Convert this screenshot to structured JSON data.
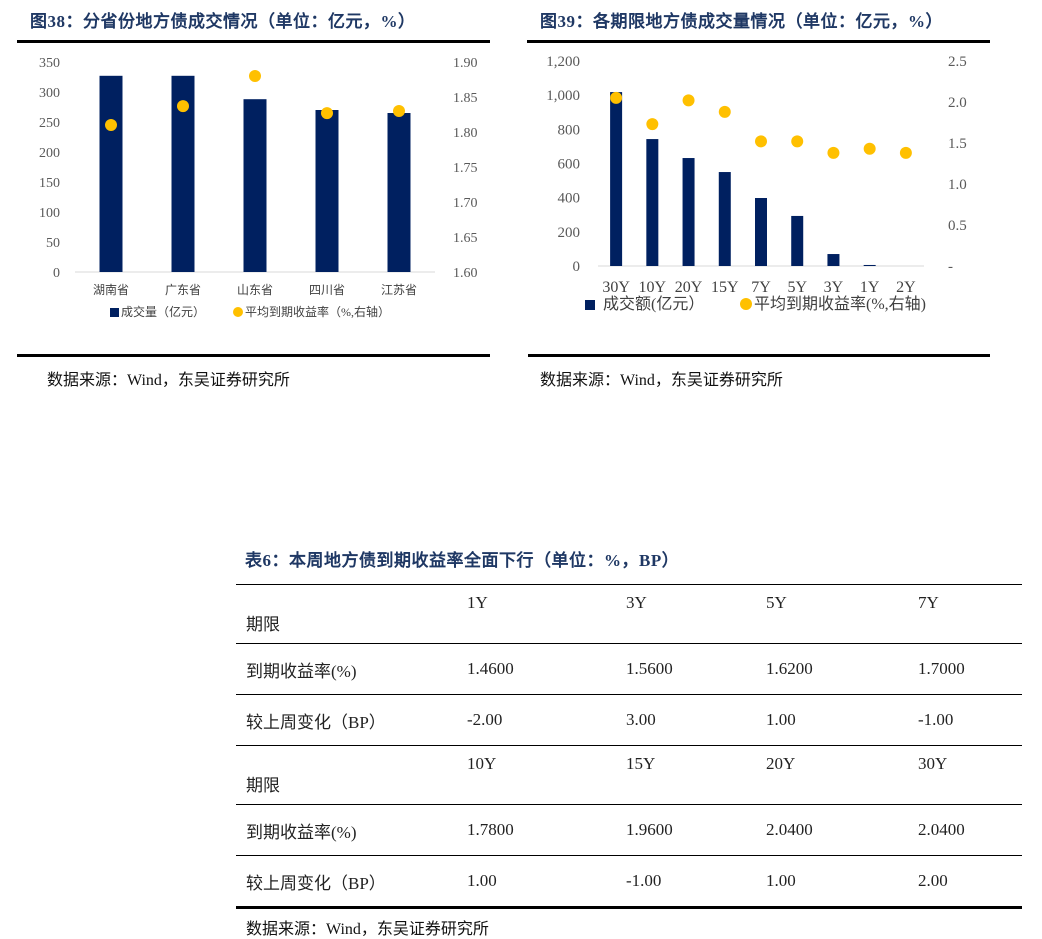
{
  "fig38": {
    "title": "图38：分省份地方债成交情况（单位：亿元，%）",
    "source": "数据来源：Wind，东吴证券研究所"
  },
  "fig39": {
    "title": "图39：各期限地方债成交量情况（单位：亿元，%）",
    "source": "数据来源：Wind，东吴证券研究所"
  },
  "table6": {
    "title": "表6：本周地方债到期收益率全面下行（单位：%，BP）",
    "rows": [
      {
        "label": "期限",
        "values": [
          "1Y",
          "3Y",
          "5Y",
          "7Y"
        ],
        "type": "header"
      },
      {
        "label": "到期收益率(%)",
        "values": [
          "1.4600",
          "1.5600",
          "1.6200",
          "1.7000"
        ],
        "type": "data"
      },
      {
        "label": "较上周变化（BP）",
        "values": [
          "-2.00",
          "3.00",
          "1.00",
          "-1.00"
        ],
        "type": "data"
      },
      {
        "label": "期限",
        "values": [
          "10Y",
          "15Y",
          "20Y",
          "30Y"
        ],
        "type": "header"
      },
      {
        "label": "到期收益率(%)",
        "values": [
          "1.7800",
          "1.9600",
          "2.0400",
          "2.0400"
        ],
        "type": "data"
      },
      {
        "label": "较上周变化（BP）",
        "values": [
          "1.00",
          "-1.00",
          "1.00",
          "2.00"
        ],
        "type": "data"
      }
    ],
    "source": "数据来源：Wind，东吴证券研究所"
  },
  "colors": {
    "bar": "#002060",
    "dot": "#FFC000",
    "title": "#1f3864"
  },
  "chart_data": [
    {
      "type": "bar",
      "title": "图38：分省份地方债成交情况（单位：亿元，%）",
      "categories": [
        "湖南省",
        "广东省",
        "山东省",
        "四川省",
        "江苏省"
      ],
      "series": [
        {
          "name": "成交量（亿元）",
          "type": "bar",
          "axis": "left",
          "values": [
            327,
            327,
            288,
            270,
            265
          ]
        },
        {
          "name": "平均到期收益率（%,右轴）",
          "type": "scatter",
          "axis": "right",
          "values": [
            1.81,
            1.837,
            1.88,
            1.827,
            1.83
          ]
        }
      ],
      "y_left": {
        "ticks": [
          "0",
          "50",
          "100",
          "150",
          "200",
          "250",
          "300",
          "350"
        ],
        "range": [
          0,
          350
        ]
      },
      "y_right": {
        "ticks": [
          "1.60",
          "1.65",
          "1.70",
          "1.75",
          "1.80",
          "1.85",
          "1.90"
        ],
        "range": [
          1.6,
          1.9
        ]
      },
      "legend": [
        "成交量（亿元）",
        "平均到期收益率（%,右轴）"
      ],
      "legend_position": "bottom",
      "grid": false
    },
    {
      "type": "bar",
      "title": "图39：各期限地方债成交量情况（单位：亿元，%）",
      "categories": [
        "30Y",
        "10Y",
        "20Y",
        "15Y",
        "7Y",
        "5Y",
        "3Y",
        "1Y",
        "2Y"
      ],
      "series": [
        {
          "name": "成交额(亿元）",
          "type": "bar",
          "axis": "left",
          "values": [
            1018,
            743,
            632,
            550,
            398,
            293,
            70,
            6,
            0
          ]
        },
        {
          "name": "平均到期收益率(%,右轴)",
          "type": "scatter",
          "axis": "right",
          "values": [
            2.05,
            1.73,
            2.02,
            1.88,
            1.52,
            1.52,
            1.38,
            1.43,
            1.38
          ]
        }
      ],
      "y_left": {
        "ticks": [
          "0",
          "200",
          "400",
          "600",
          "800",
          "1,000",
          "1,200"
        ],
        "range": [
          0,
          1200
        ]
      },
      "y_right": {
        "ticks": [
          "-",
          "0.5",
          "1.0",
          "1.5",
          "2.0",
          "2.5"
        ],
        "range": [
          0,
          2.5
        ]
      },
      "legend": [
        "成交额(亿元）",
        "平均到期收益率(%,右轴)"
      ],
      "legend_position": "bottom",
      "grid": false
    }
  ]
}
